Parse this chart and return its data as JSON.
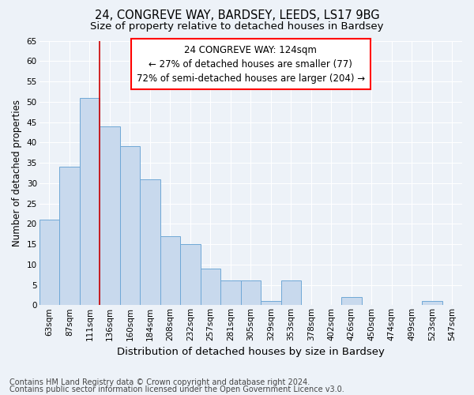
{
  "title_line1": "24, CONGREVE WAY, BARDSEY, LEEDS, LS17 9BG",
  "title_line2": "Size of property relative to detached houses in Bardsey",
  "xlabel": "Distribution of detached houses by size in Bardsey",
  "ylabel": "Number of detached properties",
  "categories": [
    "63sqm",
    "87sqm",
    "111sqm",
    "136sqm",
    "160sqm",
    "184sqm",
    "208sqm",
    "232sqm",
    "257sqm",
    "281sqm",
    "305sqm",
    "329sqm",
    "353sqm",
    "378sqm",
    "402sqm",
    "426sqm",
    "450sqm",
    "474sqm",
    "499sqm",
    "523sqm",
    "547sqm"
  ],
  "values": [
    21,
    34,
    51,
    44,
    39,
    31,
    17,
    15,
    9,
    6,
    6,
    1,
    6,
    0,
    0,
    2,
    0,
    0,
    0,
    1,
    0
  ],
  "bar_color": "#c8d9ed",
  "bar_edge_color": "#6fa8d6",
  "vline_color": "#cc0000",
  "vline_x": 2.5,
  "annotation_title": "24 CONGREVE WAY: 124sqm",
  "annotation_line1": "← 27% of detached houses are smaller (77)",
  "annotation_line2": "72% of semi-detached houses are larger (204) →",
  "ylim": [
    0,
    65
  ],
  "yticks": [
    0,
    5,
    10,
    15,
    20,
    25,
    30,
    35,
    40,
    45,
    50,
    55,
    60,
    65
  ],
  "footnote1": "Contains HM Land Registry data © Crown copyright and database right 2024.",
  "footnote2": "Contains public sector information licensed under the Open Government Licence v3.0.",
  "bg_color": "#edf2f8",
  "plot_bg_color": "#edf2f8",
  "grid_color": "#ffffff",
  "title1_fontsize": 10.5,
  "title2_fontsize": 9.5,
  "xlabel_fontsize": 9.5,
  "ylabel_fontsize": 8.5,
  "tick_fontsize": 7.5,
  "annot_title_fontsize": 8.5,
  "annot_body_fontsize": 8.5,
  "footnote_fontsize": 7.0
}
